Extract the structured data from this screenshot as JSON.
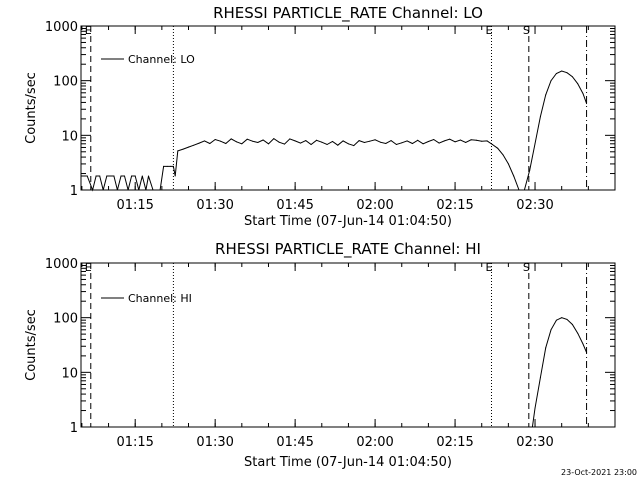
{
  "footer_timestamp": "23-Oct-2021 23:00",
  "colors": {
    "line": "#000000",
    "background": "#ffffff"
  },
  "chart_data": [
    {
      "type": "line",
      "title": "RHESSI PARTICLE_RATE Channel: LO",
      "xlabel": "Start Time (07-Jun-14 01:04:50)",
      "ylabel": "Counts/sec",
      "y_scale": "log",
      "ylim": [
        1,
        1000
      ],
      "xlim": [
        "01:04:50",
        "02:45:00"
      ],
      "x_ticks": [
        "01:15",
        "01:30",
        "01:45",
        "02:00",
        "02:15",
        "02:30"
      ],
      "y_ticks": [
        "1",
        "10",
        "100",
        "1000"
      ],
      "grid": false,
      "legend": {
        "position": "top-left",
        "entries": [
          "Channel: LO"
        ]
      },
      "markers": [
        {
          "label": "E",
          "time": "01:06:40",
          "style": "dashed"
        },
        {
          "label": "",
          "time": "01:22:10",
          "style": "dotted"
        },
        {
          "label": "E",
          "time": "02:21:50",
          "style": "dotted"
        },
        {
          "label": "S",
          "time": "02:28:50",
          "style": "dashed"
        },
        {
          "label": "",
          "time": "02:39:40",
          "style": "dashdot"
        }
      ],
      "series": [
        {
          "name": "Channel: LO",
          "x": [
            "01:04:50",
            "01:06:00",
            "01:07:00",
            "01:07:40",
            "01:08:20",
            "01:09:00",
            "01:09:40",
            "01:10:20",
            "01:11:00",
            "01:11:40",
            "01:12:20",
            "01:13:00",
            "01:13:40",
            "01:14:20",
            "01:15:00",
            "01:15:40",
            "01:16:20",
            "01:17:00",
            "01:17:30",
            "01:18:20",
            "01:19:00",
            "01:19:40",
            "01:20:20",
            "01:21:00",
            "01:21:40",
            "01:22:10",
            "01:22:30",
            "01:23:00",
            "01:24:00",
            "01:25:00",
            "01:26:00",
            "01:27:00",
            "01:28:00",
            "01:29:00",
            "01:30:00",
            "01:31:00",
            "01:32:00",
            "01:33:00",
            "01:34:00",
            "01:35:00",
            "01:36:00",
            "01:37:00",
            "01:38:00",
            "01:39:00",
            "01:40:00",
            "01:41:00",
            "01:42:00",
            "01:43:00",
            "01:44:00",
            "01:45:00",
            "01:46:00",
            "01:47:00",
            "01:48:00",
            "01:49:00",
            "01:50:00",
            "01:51:00",
            "01:52:00",
            "01:53:00",
            "01:54:00",
            "01:55:00",
            "01:56:00",
            "01:57:00",
            "01:58:00",
            "01:59:00",
            "02:00:00",
            "02:01:00",
            "02:02:00",
            "02:03:00",
            "02:04:00",
            "02:05:00",
            "02:06:00",
            "02:07:00",
            "02:08:00",
            "02:09:00",
            "02:10:00",
            "02:11:00",
            "02:12:00",
            "02:13:00",
            "02:14:00",
            "02:15:00",
            "02:16:00",
            "02:17:00",
            "02:18:00",
            "02:19:00",
            "02:20:00",
            "02:21:00",
            "02:22:00",
            "02:23:00",
            "02:24:00",
            "02:25:00",
            "02:26:00",
            "02:27:00",
            "02:28:00",
            "02:29:00",
            "02:30:00",
            "02:31:00",
            "02:32:00",
            "02:33:00",
            "02:34:00",
            "02:35:00",
            "02:36:00",
            "02:37:00",
            "02:38:00",
            "02:39:00",
            "02:39:40"
          ],
          "y": [
            1.8,
            1.8,
            1.0,
            1.8,
            1.8,
            1.0,
            1.8,
            1.8,
            1.8,
            1.0,
            1.8,
            1.8,
            1.0,
            1.8,
            1.8,
            1.0,
            1.8,
            1.0,
            1.8,
            1.0,
            1.0,
            1.0,
            2.7,
            2.7,
            2.7,
            2.7,
            1.8,
            5.2,
            5.6,
            6.1,
            6.6,
            7.2,
            7.9,
            7.1,
            8.4,
            7.8,
            7.1,
            8.6,
            7.6,
            7.0,
            8.5,
            7.8,
            7.4,
            8.2,
            7.0,
            8.7,
            7.5,
            6.9,
            8.6,
            7.9,
            7.2,
            8.0,
            6.8,
            8.1,
            7.5,
            6.8,
            7.7,
            6.6,
            7.9,
            7.0,
            6.5,
            8.0,
            7.4,
            7.8,
            8.3,
            7.5,
            7.1,
            8.0,
            6.8,
            7.3,
            7.9,
            7.1,
            8.1,
            7.0,
            7.7,
            8.4,
            7.2,
            7.9,
            8.5,
            7.6,
            8.2,
            7.4,
            8.3,
            8.1,
            7.8,
            7.9,
            6.8,
            5.8,
            4.4,
            3.0,
            1.8,
            1.0,
            1.0,
            2.3,
            7.0,
            22,
            55,
            100,
            135,
            150,
            140,
            118,
            88,
            58,
            38
          ]
        }
      ]
    },
    {
      "type": "line",
      "title": "RHESSI PARTICLE_RATE Channel: HI",
      "xlabel": "Start Time (07-Jun-14 01:04:50)",
      "ylabel": "Counts/sec",
      "y_scale": "log",
      "ylim": [
        1,
        1000
      ],
      "xlim": [
        "01:04:50",
        "02:45:00"
      ],
      "x_ticks": [
        "01:15",
        "01:30",
        "01:45",
        "02:00",
        "02:15",
        "02:30"
      ],
      "y_ticks": [
        "1",
        "10",
        "100",
        "1000"
      ],
      "grid": false,
      "legend": {
        "position": "top-left",
        "entries": [
          "Channel: HI"
        ]
      },
      "markers": [
        {
          "label": "E",
          "time": "01:06:40",
          "style": "dashed"
        },
        {
          "label": "",
          "time": "01:22:10",
          "style": "dotted"
        },
        {
          "label": "E",
          "time": "02:21:50",
          "style": "dotted"
        },
        {
          "label": "S",
          "time": "02:28:50",
          "style": "dashed"
        },
        {
          "label": "",
          "time": "02:39:40",
          "style": "dashdot"
        }
      ],
      "series": [
        {
          "name": "Channel: HI",
          "x": [
            "02:29:30",
            "02:30:00",
            "02:31:00",
            "02:32:00",
            "02:33:00",
            "02:34:00",
            "02:35:00",
            "02:36:00",
            "02:37:00",
            "02:38:00",
            "02:39:00",
            "02:39:40"
          ],
          "y": [
            1.0,
            2.2,
            8.0,
            28,
            60,
            90,
            100,
            93,
            75,
            52,
            33,
            23
          ]
        }
      ]
    }
  ]
}
